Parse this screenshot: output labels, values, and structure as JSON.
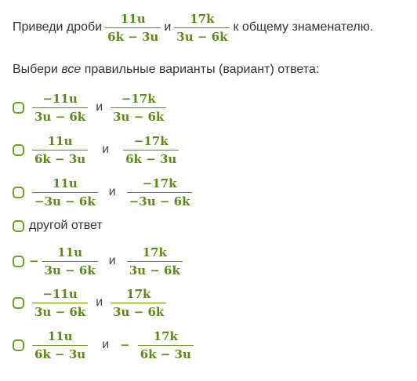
{
  "question": {
    "lead": "Приведи дроби",
    "and": "и",
    "tail": "к общему знаменателю.",
    "frac1": {
      "num": "11u",
      "den": "6k − 3u"
    },
    "frac2": {
      "num": "17k",
      "den": "3u − 6k"
    }
  },
  "instruction": {
    "before": "Выбери",
    "emphasis": "все",
    "after": "правильные варианты (вариант) ответа:"
  },
  "options": [
    {
      "a": {
        "num": "−11u",
        "den": "3u − 6k"
      },
      "and": "и",
      "b": {
        "num": "−17k",
        "den": "3u − 6k"
      }
    },
    {
      "a": {
        "num": "11u",
        "den": "6k − 3u"
      },
      "and": "и",
      "b": {
        "num": "−17k",
        "den": "6k − 3u"
      }
    },
    {
      "a": {
        "num": "11u",
        "den": "−3u − 6k"
      },
      "and": "и",
      "b": {
        "num": "−17k",
        "den": "−3u − 6k"
      }
    },
    {
      "text": "другой ответ"
    },
    {
      "a_sign": "−",
      "a": {
        "num": "11u",
        "den": "3u − 6k"
      },
      "and": "и",
      "b": {
        "num": "17k",
        "den": "3u − 6k"
      }
    },
    {
      "a": {
        "num": "−11u",
        "den": "3u − 6k"
      },
      "and": "и",
      "b": {
        "num": "17k",
        "den": "3u − 6k"
      }
    },
    {
      "a": {
        "num": "11u",
        "den": "6k − 3u"
      },
      "and": "и",
      "b_sign": "−",
      "b": {
        "num": "17k",
        "den": "6k − 3u"
      }
    }
  ],
  "colors": {
    "accent": "#5c8a16",
    "checkbox_border": "#6aa31f",
    "text": "#333333"
  }
}
